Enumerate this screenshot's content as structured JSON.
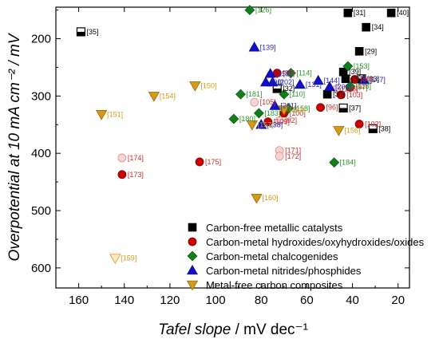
{
  "chart_data": {
    "type": "scatter",
    "title": "",
    "xlabel": "Tafel slope",
    "xunit": " / mV dec⁻¹",
    "ylabel": "Overpotential at 10 mA cm⁻² / mV",
    "xlim": [
      170,
      15
    ],
    "ylim": [
      635,
      145
    ],
    "x_reversed": true,
    "y_reversed": true,
    "x_ticks": [
      160,
      140,
      120,
      100,
      80,
      60,
      40,
      20
    ],
    "y_ticks": [
      200,
      300,
      400,
      500,
      600
    ],
    "grid": false,
    "legend_position": "bottom-right",
    "series": [
      {
        "name": "Carbon-free metallic catalysts",
        "marker": "square",
        "color": "#000000",
        "label_color": "#000000",
        "points": [
          {
            "x": 159,
            "y": 188,
            "label": "[35]",
            "open": true
          },
          {
            "x": 42,
            "y": 155,
            "label": "[31]"
          },
          {
            "x": 23,
            "y": 155,
            "label": "[40]"
          },
          {
            "x": 34,
            "y": 180,
            "label": "[34]"
          },
          {
            "x": 37,
            "y": 222,
            "label": "[29]"
          },
          {
            "x": 44,
            "y": 258,
            "label": "[39]"
          },
          {
            "x": 43,
            "y": 270,
            "label": "[36]"
          },
          {
            "x": 73,
            "y": 287,
            "label": "[32]",
            "open": true
          },
          {
            "x": 51,
            "y": 297,
            "label": "[30]"
          },
          {
            "x": 44,
            "y": 321,
            "label": "[37]",
            "open": true
          },
          {
            "x": 31,
            "y": 357,
            "label": "[38]",
            "open": true
          },
          {
            "x": 36,
            "y": 270,
            "label": "[33]",
            "open": true
          }
        ]
      },
      {
        "name": "Carbon-metal hydroxides/oxyhydroxides/oxides",
        "marker": "circle",
        "color": "#cc0000",
        "label_color": "#cc2b2b",
        "points": [
          {
            "x": 141,
            "y": 408,
            "label": "[174]",
            "open": true
          },
          {
            "x": 141,
            "y": 437,
            "label": "[173]"
          },
          {
            "x": 107,
            "y": 415,
            "label": "[175]"
          },
          {
            "x": 83,
            "y": 311,
            "label": "[105]",
            "open": true
          },
          {
            "x": 77,
            "y": 345,
            "label": "[109]"
          },
          {
            "x": 72,
            "y": 343,
            "label": "[92]",
            "open": true
          },
          {
            "x": 70,
            "y": 330,
            "label": "[100]"
          },
          {
            "x": 73,
            "y": 260,
            "label": "[96]"
          },
          {
            "x": 54,
            "y": 320,
            "label": "[96]"
          },
          {
            "x": 72,
            "y": 395,
            "label": "[171]",
            "open": true
          },
          {
            "x": 72,
            "y": 405,
            "label": "[172]",
            "open": true
          },
          {
            "x": 47,
            "y": 288,
            "label": "[108]",
            "open": true
          },
          {
            "x": 41,
            "y": 285,
            "label": "[97]"
          },
          {
            "x": 39,
            "y": 271,
            "label": "[80]"
          },
          {
            "x": 37,
            "y": 349,
            "label": "[102]"
          },
          {
            "x": 45,
            "y": 298,
            "label": "[103]"
          }
        ]
      },
      {
        "name": "Carbon-metal chalcogenides",
        "marker": "diamond",
        "color": "#11801a",
        "label_color": "#2a962a",
        "points": [
          {
            "x": 85,
            "y": 150,
            "label": "[126]"
          },
          {
            "x": 67,
            "y": 260,
            "label": "[114]"
          },
          {
            "x": 42,
            "y": 248,
            "label": "[153]"
          },
          {
            "x": 89,
            "y": 297,
            "label": "[181]"
          },
          {
            "x": 70,
            "y": 297,
            "label": "[110]"
          },
          {
            "x": 92,
            "y": 340,
            "label": "[180]"
          },
          {
            "x": 81,
            "y": 330,
            "label": "[183]"
          },
          {
            "x": 68,
            "y": 322,
            "label": "[158]"
          },
          {
            "x": 41,
            "y": 283,
            "label": "[118]"
          },
          {
            "x": 48,
            "y": 416,
            "label": "[184]"
          }
        ]
      },
      {
        "name": "Carbon-metal nitrides/phosphides",
        "marker": "triangle-up",
        "color": "#1010cc",
        "label_color": "#2a2ab8",
        "points": [
          {
            "x": 83,
            "y": 215,
            "label": "[139]"
          },
          {
            "x": 76,
            "y": 261,
            "label": "[152]"
          },
          {
            "x": 78,
            "y": 276,
            "label": "[90]"
          },
          {
            "x": 75,
            "y": 276,
            "label": "[202]"
          },
          {
            "x": 63,
            "y": 280,
            "label": "[131]"
          },
          {
            "x": 55,
            "y": 273,
            "label": "[144]"
          },
          {
            "x": 50,
            "y": 284,
            "label": "[200]"
          },
          {
            "x": 35,
            "y": 272,
            "label": "[147]"
          },
          {
            "x": 74,
            "y": 317,
            "label": "[201]"
          },
          {
            "x": 80,
            "y": 350,
            "label": "[138]"
          }
        ]
      },
      {
        "name": "Metal-free carbon composites",
        "marker": "triangle-down",
        "color": "#d49a1a",
        "label_color": "#d49a1a",
        "points": [
          {
            "x": 127,
            "y": 300,
            "label": "[154]"
          },
          {
            "x": 109,
            "y": 282,
            "label": "[150]"
          },
          {
            "x": 150,
            "y": 332,
            "label": "[151]"
          },
          {
            "x": 84,
            "y": 350,
            "label": "[157]"
          },
          {
            "x": 70,
            "y": 324,
            "label": "[182]"
          },
          {
            "x": 46,
            "y": 360,
            "label": "[156]"
          },
          {
            "x": 82,
            "y": 478,
            "label": "[160]"
          },
          {
            "x": 144,
            "y": 583,
            "label": "[159]",
            "open": true
          }
        ]
      }
    ]
  }
}
